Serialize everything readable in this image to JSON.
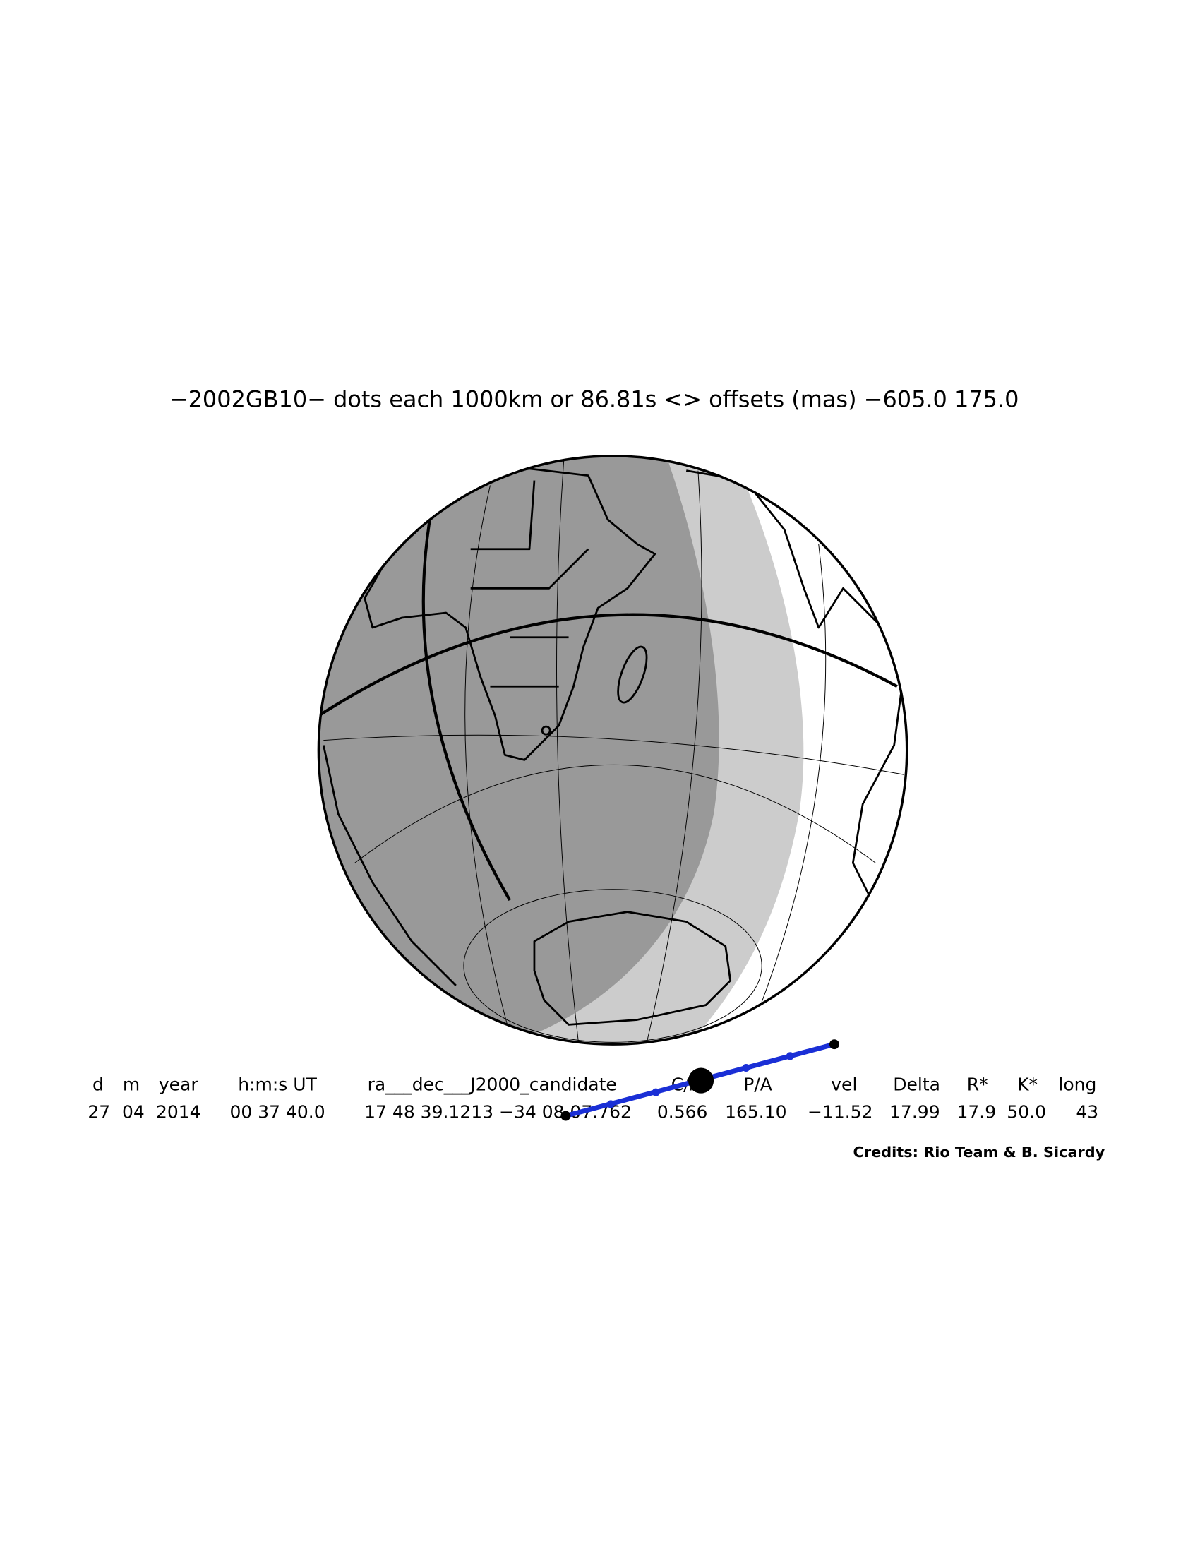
{
  "header": {
    "title": "−2002GB10− dots each 1000km or 86.81s <> offsets (mas) −605.0   175.0"
  },
  "table": {
    "headers": [
      "d",
      "m",
      "year",
      "h:m:s UT",
      "ra___dec___J2000_candidate",
      "C/A",
      "P/A",
      "vel",
      "Delta",
      "R*",
      "K*",
      "long"
    ],
    "values": [
      "27",
      "04",
      "2014",
      "00 37 40.0",
      "17 48 39.1213 −34 08 07.762",
      "0.566",
      "165.10",
      "−11.52",
      "17.99",
      "17.9",
      "50.0",
      "43"
    ]
  },
  "credits": "Credits: Rio Team & B. Sicardy"
}
